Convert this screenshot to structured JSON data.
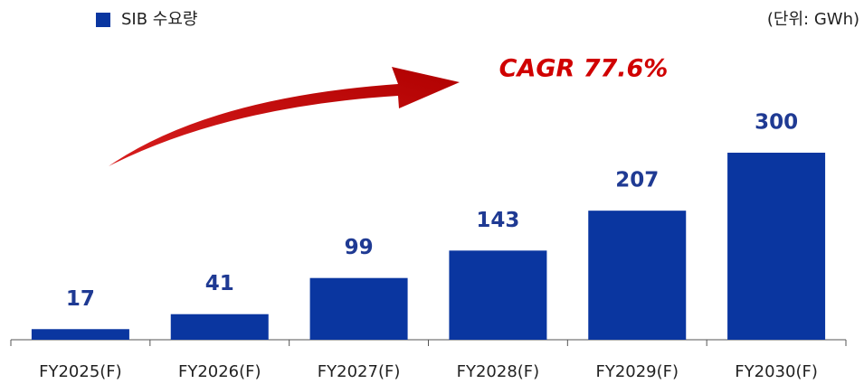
{
  "chart_data": {
    "type": "bar",
    "unit_label": "(단위: GWh)",
    "annotation": "CAGR 77.6%",
    "categories": [
      "FY2025(F)",
      "FY2026(F)",
      "FY2027(F)",
      "FY2028(F)",
      "FY2029(F)",
      "FY2030(F)"
    ],
    "series": [
      {
        "name": "SIB 수요량",
        "color": "#0a36a0",
        "values": [
          17,
          41,
          99,
          143,
          207,
          300
        ]
      }
    ],
    "legend": "top-left"
  }
}
